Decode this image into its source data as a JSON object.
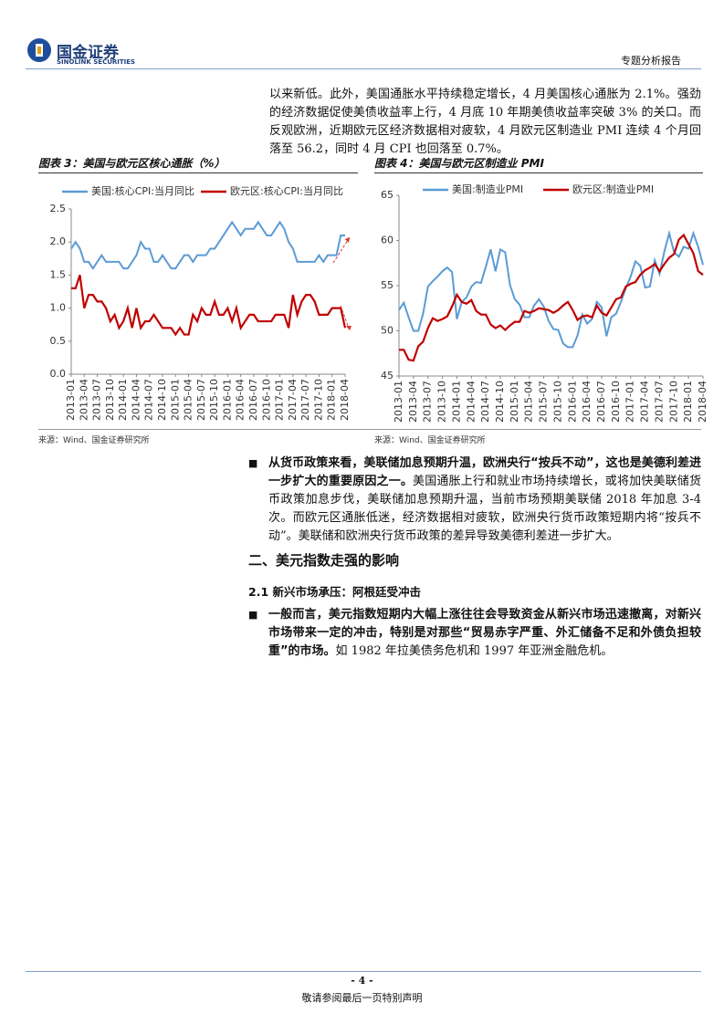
{
  "header": {
    "company": "国金证券",
    "company_en": "SINOLINK SECURITIES",
    "report_type": "专题分析报告"
  },
  "intro_paragraph": "以来新低。此外，美国通胀水平持续稳定增长，4 月美国核心通胀为 2.1%。强劲的经济数据促使美债收益率上行，4 月底 10 年期美债收益率突破 3% 的关口。而反观欧洲，近期欧元区经济数据相对疲软，4 月欧元区制造业 PMI 连续 4 个月回落至 56.2，同时 4 月 CPI 也回落至 0.7%。",
  "chart_data": [
    {
      "type": "line",
      "title": "图表 3：美国与欧元区核心通胀（%）",
      "source": "来源：Wind、国金证券研究所",
      "categories": [
        "2013-01",
        null,
        null,
        "2013-04",
        null,
        null,
        "2013-07",
        null,
        null,
        "2013-10",
        null,
        null,
        "2014-01",
        null,
        null,
        "2014-04",
        null,
        null,
        "2014-07",
        null,
        null,
        "2014-10",
        null,
        null,
        "2015-01",
        null,
        null,
        "2015-04",
        null,
        null,
        "2015-07",
        null,
        null,
        "2015-10",
        null,
        null,
        "2016-01",
        null,
        null,
        "2016-04",
        null,
        null,
        "2016-07",
        null,
        null,
        "2016-10",
        null,
        null,
        "2017-01",
        null,
        null,
        "2017-04",
        null,
        null,
        "2017-07",
        null,
        null,
        "2017-10",
        null,
        null,
        "2018-01",
        null,
        null,
        "2018-04"
      ],
      "series": [
        {
          "name": "美国:核心CPI:当月同比",
          "color": "#5b9bd5",
          "values": [
            1.9,
            2.0,
            1.9,
            1.7,
            1.7,
            1.6,
            1.7,
            1.8,
            1.7,
            1.7,
            1.7,
            1.7,
            1.6,
            1.6,
            1.7,
            1.8,
            2.0,
            1.9,
            1.9,
            1.7,
            1.7,
            1.8,
            1.7,
            1.6,
            1.6,
            1.7,
            1.8,
            1.8,
            1.7,
            1.8,
            1.8,
            1.8,
            1.9,
            1.9,
            2.0,
            2.1,
            2.2,
            2.3,
            2.2,
            2.1,
            2.2,
            2.2,
            2.2,
            2.3,
            2.2,
            2.1,
            2.1,
            2.2,
            2.3,
            2.2,
            2.0,
            1.9,
            1.7,
            1.7,
            1.7,
            1.7,
            1.7,
            1.8,
            1.7,
            1.8,
            1.8,
            1.8,
            2.1,
            2.1
          ]
        },
        {
          "name": "欧元区:核心CPI:当月同比",
          "color": "#c00000",
          "values": [
            1.3,
            1.3,
            1.5,
            1.0,
            1.2,
            1.2,
            1.1,
            1.1,
            1.0,
            0.8,
            0.9,
            0.7,
            0.8,
            1.0,
            0.7,
            1.0,
            0.7,
            0.8,
            0.8,
            0.9,
            0.8,
            0.7,
            0.7,
            0.7,
            0.6,
            0.7,
            0.6,
            0.6,
            0.9,
            0.8,
            1.0,
            0.9,
            0.9,
            1.1,
            0.9,
            0.9,
            1.0,
            0.8,
            1.0,
            0.7,
            0.8,
            0.9,
            0.9,
            0.8,
            0.8,
            0.8,
            0.8,
            0.9,
            0.9,
            0.9,
            0.7,
            1.2,
            0.9,
            1.1,
            1.2,
            1.2,
            1.1,
            0.9,
            0.9,
            0.9,
            1.0,
            1.0,
            1.0,
            0.7
          ]
        }
      ],
      "ylim": [
        0,
        2.5
      ],
      "yticks": [
        {
          "value": 0,
          "label": "0.0"
        },
        0.5,
        {
          "value": 1,
          "label": "1.0"
        },
        1.5,
        {
          "value": 2,
          "label": "2.0"
        },
        2.5
      ]
    },
    {
      "type": "line",
      "title": "图表 4：美国与欧元区制造业 PMI",
      "source": "来源：Wind、国金证券研究所",
      "categories": [
        "2013-01",
        null,
        null,
        "2013-04",
        null,
        null,
        "2013-07",
        null,
        null,
        "2013-10",
        null,
        null,
        "2014-01",
        null,
        null,
        "2014-04",
        null,
        null,
        "2014-07",
        null,
        null,
        "2014-10",
        null,
        null,
        "2015-01",
        null,
        null,
        "2015-04",
        null,
        null,
        "2015-07",
        null,
        null,
        "2015-10",
        null,
        null,
        "2016-01",
        null,
        null,
        "2016-04",
        null,
        null,
        "2016-07",
        null,
        null,
        "2016-10",
        null,
        null,
        "2017-01",
        null,
        null,
        "2017-04",
        null,
        null,
        "2017-07",
        null,
        null,
        "2017-10",
        null,
        null,
        "2018-01",
        null,
        null,
        "2018-04"
      ],
      "series": [
        {
          "name": "美国:制造业PMI",
          "color": "#5b9bd5",
          "values": [
            52.3,
            53.1,
            51.5,
            50.0,
            50.0,
            51.9,
            54.9,
            55.5,
            56.0,
            56.6,
            57.0,
            56.5,
            51.3,
            53.2,
            53.7,
            54.9,
            55.4,
            55.3,
            57.1,
            59.0,
            56.6,
            59.0,
            58.7,
            55.1,
            53.5,
            52.9,
            51.5,
            51.5,
            52.8,
            53.5,
            52.7,
            51.1,
            50.2,
            50.1,
            48.6,
            48.2,
            48.2,
            49.5,
            51.8,
            50.8,
            51.3,
            53.2,
            52.6,
            49.4,
            51.5,
            51.9,
            53.2,
            54.7,
            56.0,
            57.7,
            57.2,
            54.8,
            54.9,
            57.8,
            56.3,
            58.8,
            60.8,
            58.7,
            58.2,
            59.3,
            59.1,
            60.8,
            59.3,
            57.3
          ]
        },
        {
          "name": "欧元区:制造业PMI",
          "color": "#c00000",
          "values": [
            47.9,
            47.9,
            46.8,
            46.7,
            48.3,
            48.8,
            50.3,
            51.4,
            51.1,
            51.3,
            51.6,
            52.7,
            54.0,
            53.2,
            53.0,
            53.4,
            52.2,
            51.8,
            51.8,
            50.7,
            50.3,
            50.6,
            50.1,
            50.6,
            51.0,
            51.0,
            52.2,
            52.0,
            52.2,
            52.5,
            52.4,
            52.3,
            52.0,
            52.3,
            52.8,
            53.2,
            52.3,
            51.2,
            51.6,
            51.7,
            51.5,
            52.8,
            52.0,
            51.7,
            52.6,
            53.5,
            53.7,
            54.9,
            55.2,
            55.4,
            56.2,
            56.7,
            57.0,
            57.4,
            56.6,
            57.4,
            58.1,
            58.5,
            60.1,
            60.6,
            59.6,
            58.6,
            56.6,
            56.2
          ]
        }
      ],
      "ylim": [
        45,
        65
      ],
      "yticks": [
        45,
        50,
        55,
        60,
        65
      ]
    }
  ],
  "bullet1": {
    "bold": "从货币政策来看，美联储加息预期升温，欧洲央行“按兵不动”，这也是美德利差进一步扩大的重要原因之一。",
    "text": "美国通胀上行和就业市场持续增长，或将加快美联储货币政策加息步伐，美联储加息预期升温，当前市场预期美联储 2018 年加息 3-4 次。而欧元区通胀低迷，经济数据相对疲软，欧洲央行货币政策短期内将“按兵不动”。美联储和欧洲央行货币政策的差异导致美德利差进一步扩大。"
  },
  "section_heading": "二、美元指数走强的影响",
  "subsection_heading": "2.1 新兴市场承压：阿根廷受冲击",
  "bullet2": {
    "bold": "一般而言，美元指数短期内大幅上涨往往会导致资金从新兴市场迅速撤离，对新兴市场带来一定的冲击，特别是对那些“贸易赤字严重、外汇储备不足和外债负担较重”的市场。",
    "text": "如 1982 年拉美债务危机和 1997 年亚洲金融危机。"
  },
  "footer": {
    "page_number": "- 4 -",
    "disclaimer": "敬请参阅最后一页特别声明"
  }
}
